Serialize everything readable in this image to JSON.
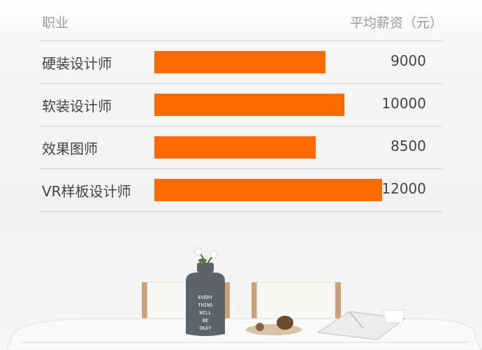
{
  "header": {
    "col_left": "职业",
    "col_right": "平均薪资（元）"
  },
  "chart_data": {
    "type": "bar",
    "orientation": "horizontal",
    "categories": [
      "硬装设计师",
      "软装设计师",
      "效果图师",
      "VR样板设计师"
    ],
    "values": [
      9000,
      10000,
      8500,
      12000
    ],
    "value_labels": [
      "9000",
      "10000",
      "8500",
      "12000"
    ],
    "xlim": [
      0,
      12500
    ],
    "grid": false,
    "bar_color": "#ff6a00"
  },
  "photo": {
    "vase_text": [
      "EVERY",
      "THING",
      "WILL",
      "BE",
      "OKAY"
    ]
  }
}
